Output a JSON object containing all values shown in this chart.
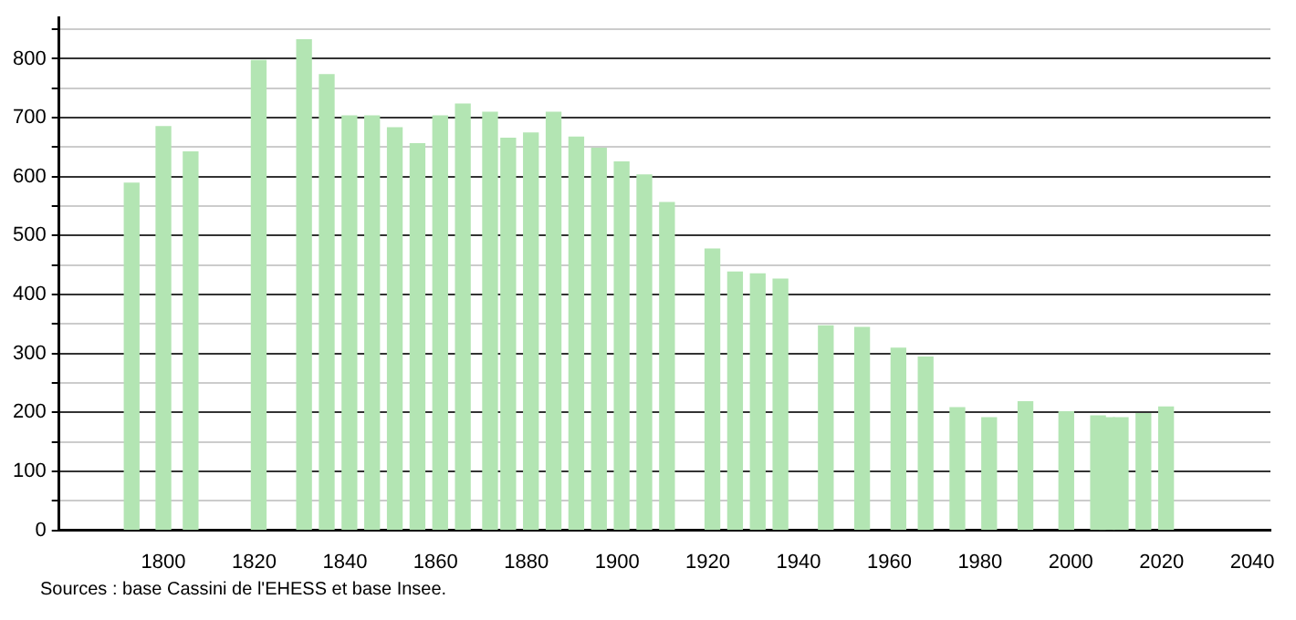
{
  "chart_data": {
    "type": "bar",
    "x": [
      1793,
      1800,
      1806,
      1821,
      1831,
      1836,
      1841,
      1846,
      1851,
      1856,
      1861,
      1866,
      1872,
      1876,
      1881,
      1886,
      1891,
      1896,
      1901,
      1906,
      1911,
      1921,
      1926,
      1931,
      1936,
      1946,
      1954,
      1962,
      1968,
      1975,
      1982,
      1990,
      1999,
      2006,
      2008,
      2011,
      2016,
      2021
    ],
    "values": [
      589,
      685,
      642,
      797,
      832,
      773,
      703,
      703,
      683,
      656,
      703,
      723,
      709,
      665,
      674,
      709,
      667,
      648,
      625,
      603,
      556,
      477,
      438,
      435,
      426,
      347,
      344,
      309,
      294,
      208,
      191,
      218,
      201,
      194,
      191,
      191,
      198,
      209
    ],
    "color": "#b3e5b3",
    "xlim": [
      1777,
      2044
    ],
    "xticks": [
      1800,
      1820,
      1840,
      1860,
      1880,
      1900,
      1920,
      1940,
      1960,
      1980,
      2000,
      2020,
      2040
    ],
    "ylim": [
      0,
      870
    ],
    "yticks": [
      0,
      {
        "value": 50,
        "label": null
      },
      100,
      {
        "value": 150,
        "label": null
      },
      200,
      {
        "value": 250,
        "label": null
      },
      300,
      {
        "value": 350,
        "label": null
      },
      400,
      {
        "value": 450,
        "label": null
      },
      500,
      {
        "value": 550,
        "label": null
      },
      600,
      {
        "value": 650,
        "label": null
      },
      700,
      {
        "value": 750,
        "label": null
      },
      800,
      {
        "value": 850,
        "label": null
      }
    ],
    "grid": "y",
    "legend": false,
    "annotations": [
      "Sources : base Cassini de l'EHESS et base Insee."
    ]
  }
}
